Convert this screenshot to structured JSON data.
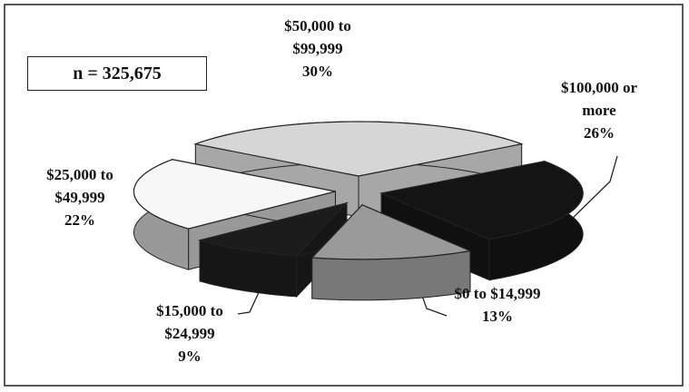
{
  "chart_data": {
    "type": "pie",
    "annotation": "n = 325,675",
    "categories": [
      "$50,000 to $99,999",
      "$100,000 or more",
      "$0 to $14,999",
      "$15,000 to $24,999",
      "$25,000 to $49,999"
    ],
    "values": [
      30,
      26,
      13,
      9,
      22
    ],
    "value_labels": [
      "30%",
      "26%",
      "13%",
      "9%",
      "22%"
    ],
    "colors": [
      "#d6d6d6",
      "#141414",
      "#9a9a9a",
      "#1c1c1c",
      "#f7f7f7"
    ]
  }
}
